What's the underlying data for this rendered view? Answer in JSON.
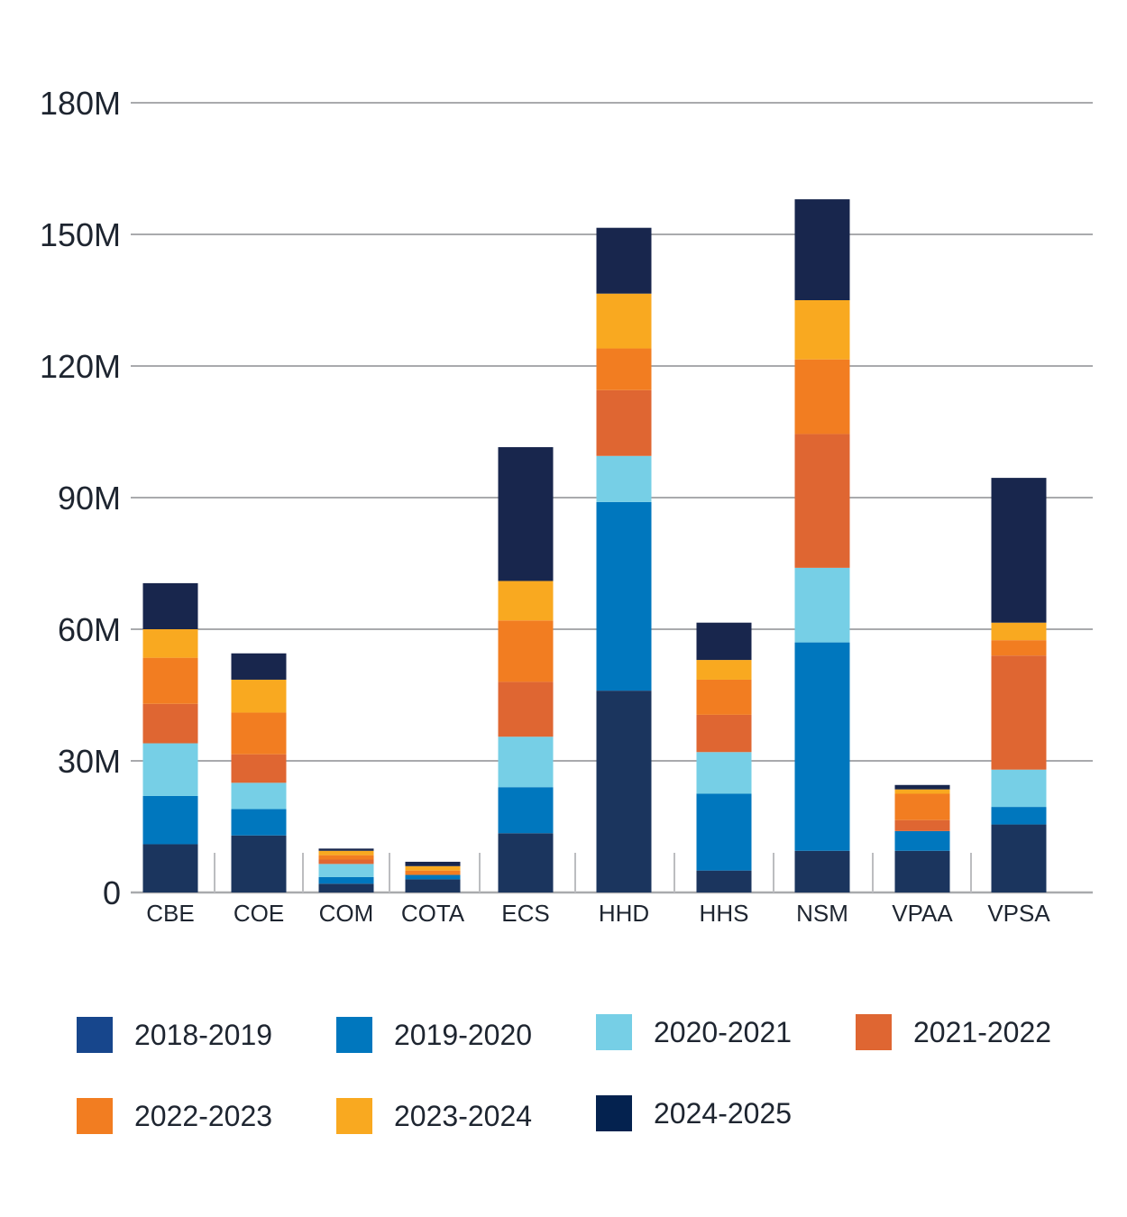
{
  "chart_data": {
    "type": "bar",
    "stacked": true,
    "title": "",
    "xlabel": "",
    "ylabel": "",
    "ylim": [
      0,
      180000000
    ],
    "yticks": [
      0,
      30000000,
      60000000,
      90000000,
      120000000,
      150000000,
      180000000
    ],
    "ytick_labels": [
      "0",
      "30M",
      "60M",
      "90M",
      "120M",
      "150M",
      "180M"
    ],
    "grid": true,
    "legend_position": "bottom",
    "categories": [
      "CBE",
      "COE",
      "COM",
      "COTA",
      "ECS",
      "HHD",
      "HHS",
      "NSM",
      "VPAA",
      "VPSA"
    ],
    "series": [
      {
        "name": "2018-2019",
        "color": "#1b355e",
        "values": [
          11000000,
          13000000,
          2000000,
          3000000,
          13500000,
          46000000,
          5000000,
          9500000,
          9500000,
          15500000
        ]
      },
      {
        "name": "2019-2020",
        "color": "#0077be",
        "values": [
          11000000,
          6000000,
          1500000,
          1000000,
          10500000,
          43000000,
          17500000,
          47500000,
          4500000,
          4000000
        ]
      },
      {
        "name": "2020-2021",
        "color": "#76cfe6",
        "values": [
          12000000,
          6000000,
          3000000,
          0,
          11500000,
          10500000,
          9500000,
          17000000,
          0,
          8500000
        ]
      },
      {
        "name": "2021-2022",
        "color": "#df6632",
        "values": [
          9000000,
          6500000,
          1000000,
          0,
          12500000,
          15000000,
          8500000,
          30500000,
          2500000,
          26000000
        ]
      },
      {
        "name": "2022-2023",
        "color": "#f27d21",
        "values": [
          10500000,
          9500000,
          1000000,
          1000000,
          14000000,
          9500000,
          8000000,
          17000000,
          6000000,
          3500000
        ]
      },
      {
        "name": "2023-2024",
        "color": "#f9a920",
        "values": [
          6500000,
          7500000,
          1000000,
          1000000,
          9000000,
          12500000,
          4500000,
          13500000,
          1000000,
          4000000
        ]
      },
      {
        "name": "2024-2025",
        "color": "#18264d",
        "values": [
          10500000,
          6000000,
          500000,
          1000000,
          30500000,
          15000000,
          8500000,
          23000000,
          1000000,
          33000000
        ]
      }
    ]
  },
  "legend_colors": [
    "#17468c",
    "#0077be",
    "#76cfe6",
    "#df6632",
    "#f27d21",
    "#f9a920",
    "#04224f"
  ]
}
